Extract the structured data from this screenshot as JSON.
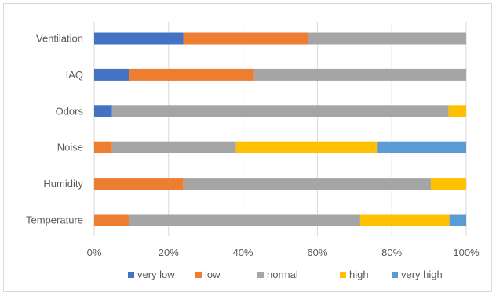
{
  "chart_data": {
    "type": "bar",
    "orientation": "horizontal",
    "stacked": "percent",
    "title": "",
    "xlabel": "",
    "ylabel": "",
    "xlim": [
      0,
      100
    ],
    "x_ticks": [
      "0%",
      "20%",
      "40%",
      "60%",
      "80%",
      "100%"
    ],
    "grid": "vertical",
    "legend_position": "bottom",
    "categories": [
      "Ventilation",
      "IAQ",
      "Odors",
      "Noise",
      "Humidity",
      "Temperature"
    ],
    "series": [
      {
        "name": "very low",
        "color": "#4472c4",
        "values": [
          24,
          9.5,
          4.8,
          0,
          0,
          0
        ]
      },
      {
        "name": "low",
        "color": "#ed7d31",
        "values": [
          33.5,
          33.5,
          0,
          4.8,
          24,
          9.5
        ]
      },
      {
        "name": "normal",
        "color": "#a5a5a5",
        "values": [
          42.5,
          57,
          90.5,
          33.3,
          66.5,
          62
        ]
      },
      {
        "name": "high",
        "color": "#ffc000",
        "values": [
          0,
          0,
          4.7,
          38.1,
          9.5,
          24
        ]
      },
      {
        "name": "very high",
        "color": "#5b9bd5",
        "values": [
          0,
          0,
          0,
          23.8,
          0,
          4.5
        ]
      }
    ]
  }
}
